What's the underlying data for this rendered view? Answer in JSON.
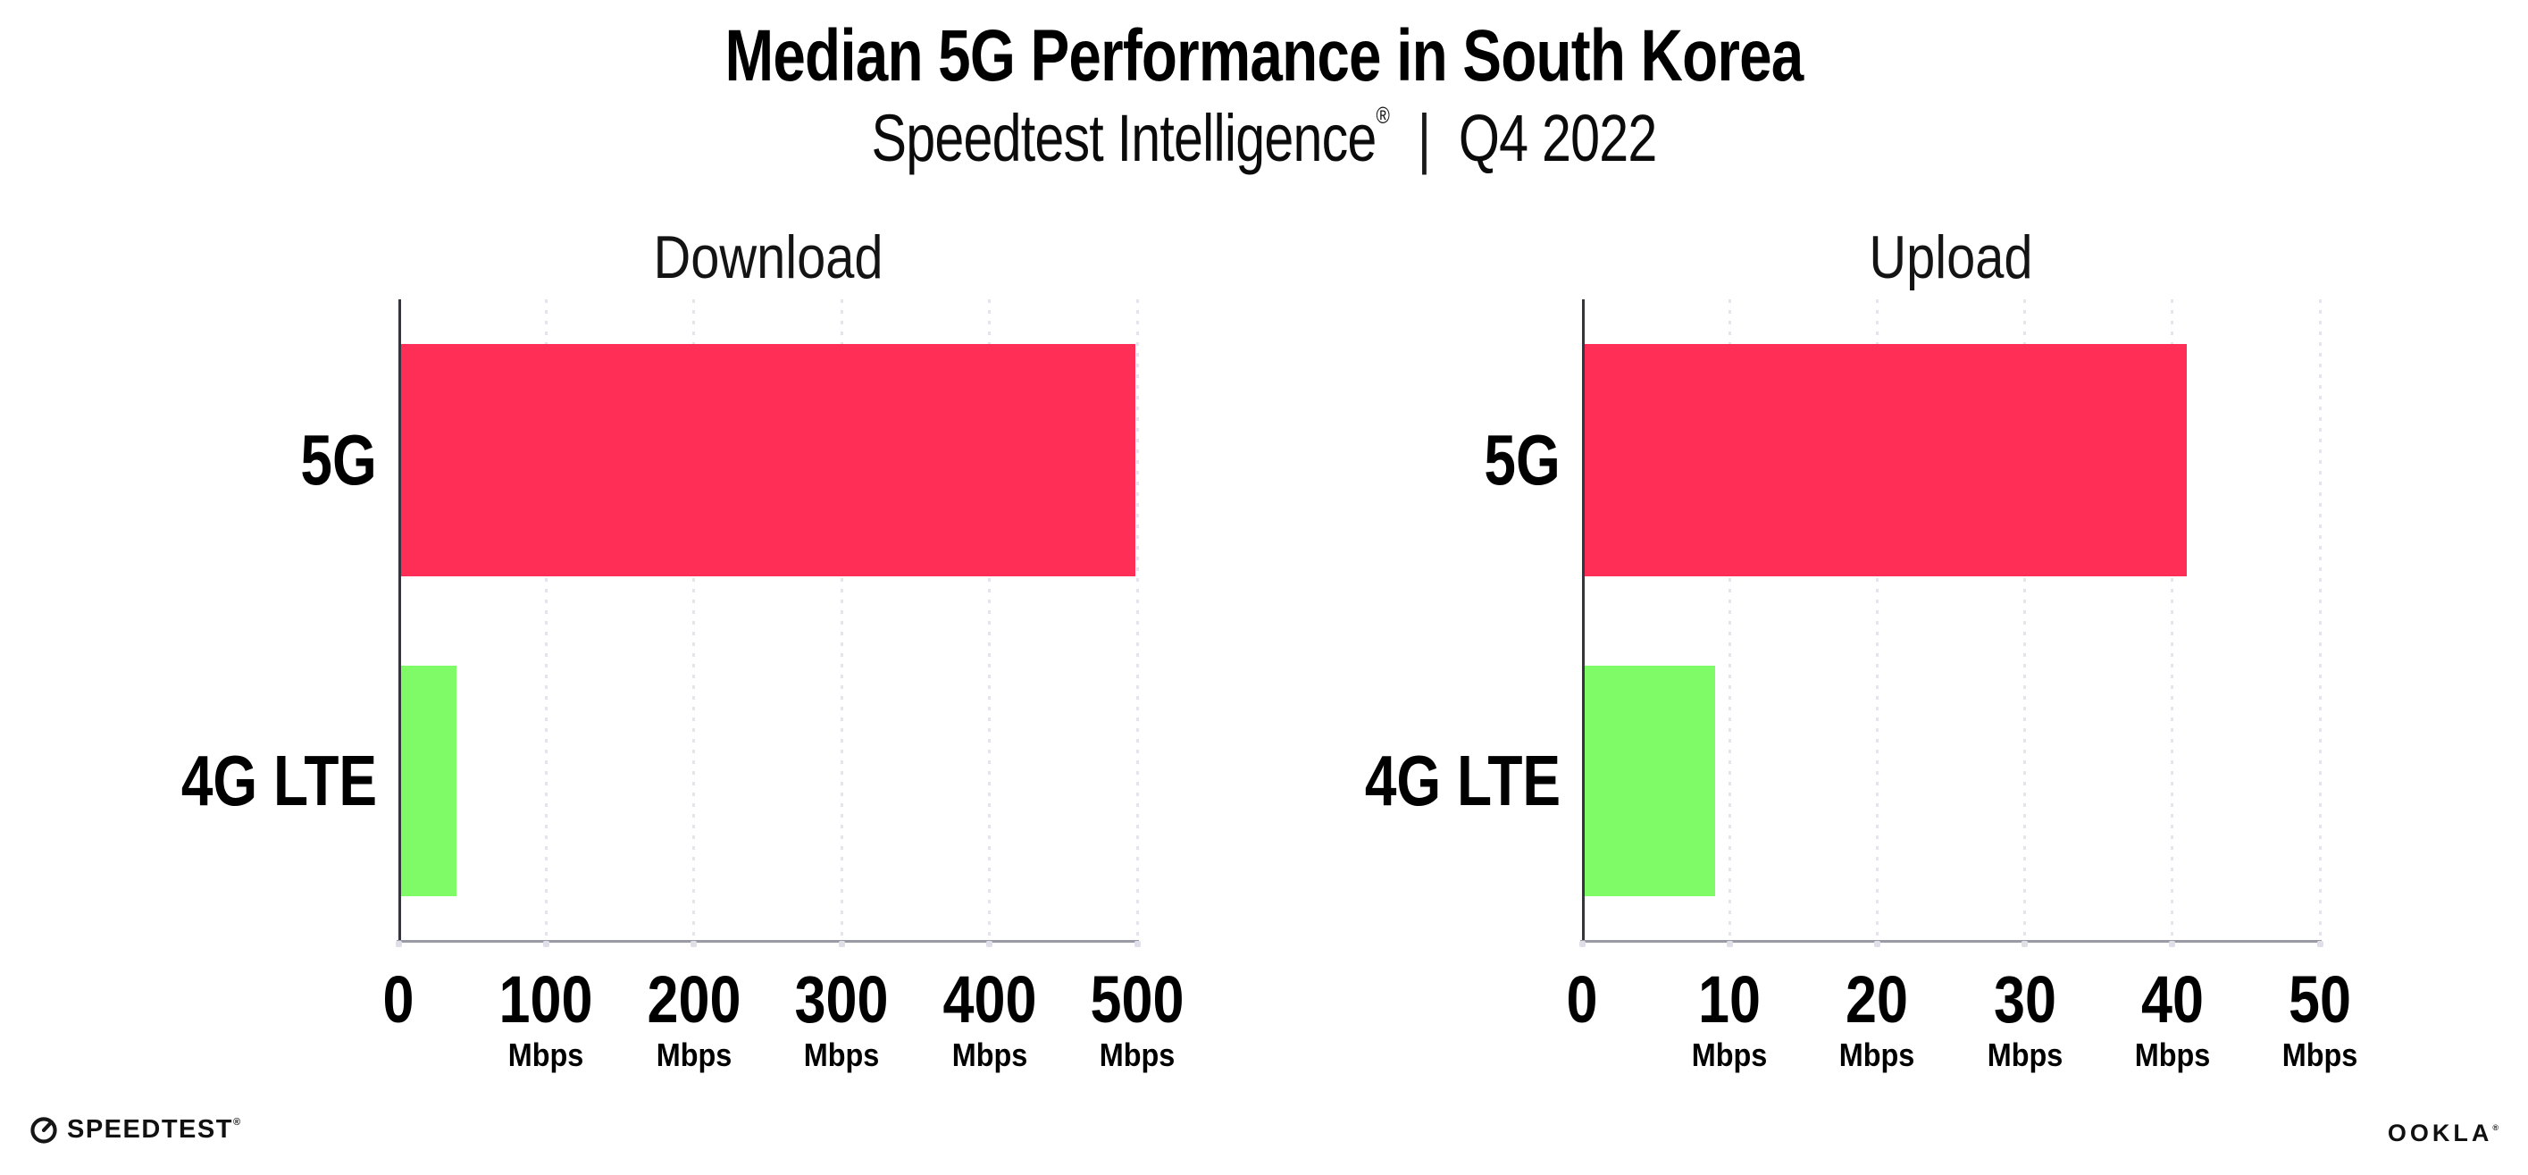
{
  "header": {
    "title": "Median 5G Performance in South Korea",
    "subtitle_brand": "Speedtest Intelligence",
    "subtitle_reg": "®",
    "subtitle_separator": "|",
    "subtitle_period": "Q4 2022"
  },
  "footer": {
    "speedtest_label": "SPEEDTEST",
    "speedtest_mark": "®",
    "ookla_label": "OOKLA",
    "ookla_mark": "®"
  },
  "colors": {
    "bar_5g": "#FF2E56",
    "bar_4g_lte": "#7EFB66",
    "grid_dot": "#E4E4EF",
    "axis_x": "#9A9AA4",
    "axis_y": "#35353F",
    "tick_foot": "#DFDFE9",
    "text": "#000000"
  },
  "chart_data": [
    {
      "type": "bar",
      "orientation": "horizontal",
      "title": "Download",
      "categories": [
        "5G",
        "4G LTE"
      ],
      "values": [
        499,
        39
      ],
      "unit": "Mbps",
      "xlim": [
        0,
        500
      ],
      "xticks": [
        0,
        100,
        200,
        300,
        400,
        500
      ],
      "xtick_unit_label": "Mbps",
      "unit_shown_on_zero_tick": false,
      "grid": "dotted-vertical",
      "legend": "none",
      "bar_colors": [
        "#FF2E56",
        "#7EFB66"
      ]
    },
    {
      "type": "bar",
      "orientation": "horizontal",
      "title": "Upload",
      "categories": [
        "5G",
        "4G LTE"
      ],
      "values": [
        41,
        9
      ],
      "unit": "Mbps",
      "xlim": [
        0,
        50
      ],
      "xticks": [
        0,
        10,
        20,
        30,
        40,
        50
      ],
      "xtick_unit_label": "Mbps",
      "unit_shown_on_zero_tick": false,
      "grid": "dotted-vertical",
      "legend": "none",
      "bar_colors": [
        "#FF2E56",
        "#7EFB66"
      ]
    }
  ]
}
